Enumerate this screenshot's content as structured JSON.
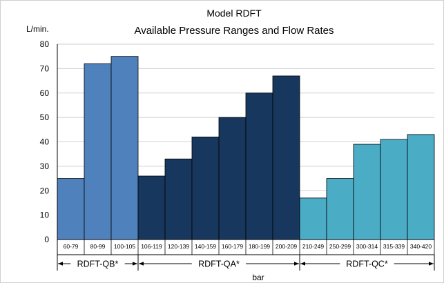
{
  "chart_data": {
    "type": "bar",
    "title": "Model RDFT",
    "subtitle": "Available Pressure Ranges and Flow Rates",
    "ylabel": "L/min.",
    "xlabel": "bar",
    "ylim": [
      0,
      80
    ],
    "yticks": [
      0,
      10,
      20,
      30,
      40,
      50,
      60,
      70,
      80
    ],
    "grid": true,
    "categories": [
      "60-79",
      "80-99",
      "100-105",
      "106-119",
      "120-139",
      "140-159",
      "160-179",
      "180-199",
      "200-209",
      "210-249",
      "250-299",
      "300-314",
      "315-339",
      "340-420"
    ],
    "values": [
      25,
      72,
      75,
      26,
      33,
      42,
      50,
      60,
      67,
      17,
      25,
      39,
      41,
      43
    ],
    "groups": [
      {
        "name": "RDFT-QB*",
        "categories": [
          "60-79",
          "80-99",
          "100-105"
        ],
        "color": "#4f81bd"
      },
      {
        "name": "RDFT-QA*",
        "categories": [
          "106-119",
          "120-139",
          "140-159",
          "160-179",
          "180-199",
          "200-209"
        ],
        "color": "#17375e"
      },
      {
        "name": "RDFT-QC*",
        "categories": [
          "210-249",
          "250-299",
          "300-314",
          "315-339",
          "340-420"
        ],
        "color": "#4bacc6"
      }
    ]
  }
}
